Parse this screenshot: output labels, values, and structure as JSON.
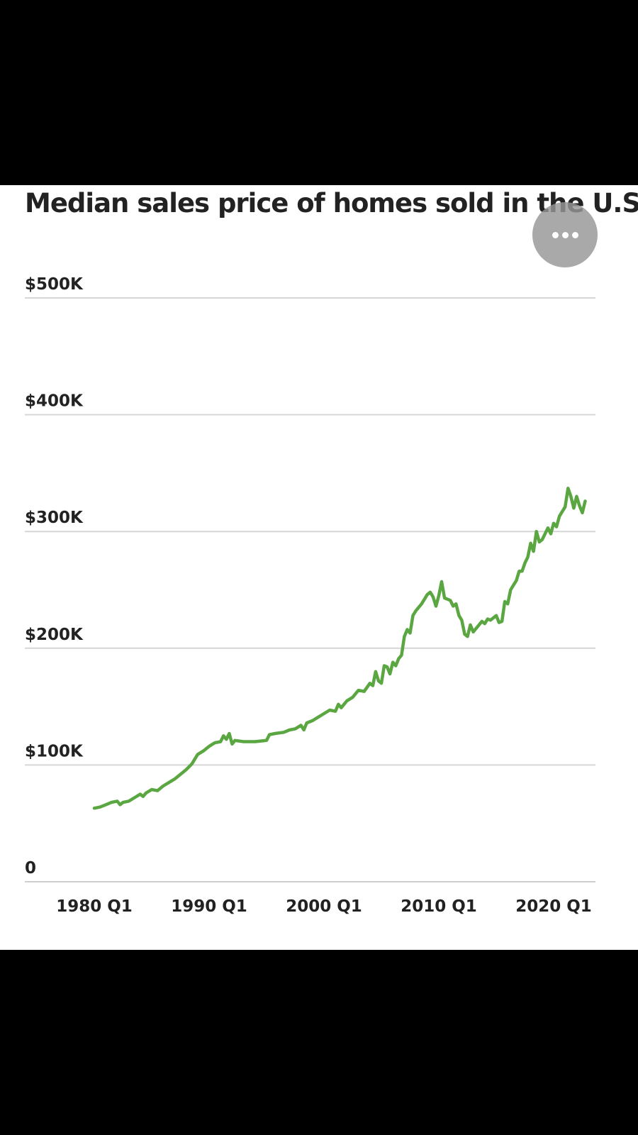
{
  "more_button_label": "More options",
  "chart_data": {
    "type": "line",
    "title": "Median sales price of homes sold in the U.S.",
    "xlabel": "",
    "ylabel": "",
    "ylim": [
      0,
      500000
    ],
    "xlim": [
      1980.0,
      2022.75
    ],
    "y_ticks": [
      {
        "value": 0,
        "label": "0"
      },
      {
        "value": 100000,
        "label": "$100K"
      },
      {
        "value": 200000,
        "label": "$200K"
      },
      {
        "value": 300000,
        "label": "$300K"
      },
      {
        "value": 400000,
        "label": "$400K"
      },
      {
        "value": 500000,
        "label": "$500K"
      }
    ],
    "x_ticks": [
      {
        "value": 1980.0,
        "label": "1980 Q1"
      },
      {
        "value": 1990.0,
        "label": "1990 Q1"
      },
      {
        "value": 2000.0,
        "label": "2000 Q1"
      },
      {
        "value": 2010.0,
        "label": "2010 Q1"
      },
      {
        "value": 2020.0,
        "label": "2020 Q1"
      }
    ],
    "grid": true,
    "color": "#5aa742",
    "series": [
      {
        "points": [
          [
            1980.0,
            63000
          ],
          [
            1980.5,
            64000
          ],
          [
            1981.0,
            66000
          ],
          [
            1981.5,
            68000
          ],
          [
            1982.0,
            69000
          ],
          [
            1982.25,
            66000
          ],
          [
            1982.5,
            68000
          ],
          [
            1983.0,
            69000
          ],
          [
            1983.5,
            72000
          ],
          [
            1984.0,
            75000
          ],
          [
            1984.25,
            73000
          ],
          [
            1984.5,
            76000
          ],
          [
            1985.0,
            79000
          ],
          [
            1985.5,
            78000
          ],
          [
            1986.0,
            82000
          ],
          [
            1986.5,
            85000
          ],
          [
            1987.0,
            88000
          ],
          [
            1987.5,
            92000
          ],
          [
            1988.0,
            96000
          ],
          [
            1988.5,
            101000
          ],
          [
            1989.0,
            109000
          ],
          [
            1989.5,
            112000
          ],
          [
            1990.0,
            116000
          ],
          [
            1990.5,
            119000
          ],
          [
            1991.0,
            120000
          ],
          [
            1991.25,
            125000
          ],
          [
            1991.5,
            122000
          ],
          [
            1991.75,
            127000
          ],
          [
            1992.0,
            118000
          ],
          [
            1992.25,
            121000
          ],
          [
            1993.0,
            120000
          ],
          [
            1994.0,
            120000
          ],
          [
            1995.0,
            121000
          ],
          [
            1995.25,
            126000
          ],
          [
            1995.75,
            127000
          ],
          [
            1996.5,
            128000
          ],
          [
            1997.0,
            130000
          ],
          [
            1997.5,
            131000
          ],
          [
            1998.0,
            134000
          ],
          [
            1998.25,
            130000
          ],
          [
            1998.5,
            136000
          ],
          [
            1999.0,
            138000
          ],
          [
            1999.5,
            141000
          ],
          [
            2000.0,
            144000
          ],
          [
            2000.5,
            147000
          ],
          [
            2001.0,
            146000
          ],
          [
            2001.25,
            152000
          ],
          [
            2001.5,
            149000
          ],
          [
            2002.0,
            155000
          ],
          [
            2002.5,
            158000
          ],
          [
            2003.0,
            164000
          ],
          [
            2003.5,
            163000
          ],
          [
            2004.0,
            170000
          ],
          [
            2004.25,
            168000
          ],
          [
            2004.5,
            180000
          ],
          [
            2004.75,
            172000
          ],
          [
            2005.0,
            170000
          ],
          [
            2005.25,
            185000
          ],
          [
            2005.5,
            184000
          ],
          [
            2005.75,
            178000
          ],
          [
            2006.0,
            188000
          ],
          [
            2006.25,
            185000
          ],
          [
            2006.5,
            191000
          ],
          [
            2006.75,
            194000
          ],
          [
            2007.0,
            210000
          ],
          [
            2007.25,
            216000
          ],
          [
            2007.5,
            213000
          ],
          [
            2007.75,
            228000
          ],
          [
            2008.0,
            232000
          ],
          [
            2008.5,
            238000
          ],
          [
            2009.0,
            246000
          ],
          [
            2009.25,
            248000
          ],
          [
            2009.5,
            244000
          ],
          [
            2009.75,
            236000
          ],
          [
            2010.0,
            245000
          ],
          [
            2010.25,
            257000
          ],
          [
            2010.5,
            243000
          ],
          [
            2011.0,
            241000
          ],
          [
            2011.25,
            236000
          ],
          [
            2011.5,
            238000
          ],
          [
            2011.75,
            228000
          ],
          [
            2012.0,
            224000
          ],
          [
            2012.25,
            212000
          ],
          [
            2012.5,
            210000
          ],
          [
            2012.75,
            220000
          ],
          [
            2013.0,
            214000
          ],
          [
            2013.5,
            220000
          ],
          [
            2013.75,
            223000
          ],
          [
            2014.0,
            221000
          ],
          [
            2014.25,
            225000
          ],
          [
            2014.5,
            224000
          ],
          [
            2015.0,
            228000
          ],
          [
            2015.25,
            222000
          ],
          [
            2015.5,
            223000
          ],
          [
            2015.75,
            240000
          ],
          [
            2016.0,
            238000
          ],
          [
            2016.25,
            250000
          ],
          [
            2016.5,
            254000
          ],
          [
            2016.75,
            258000
          ],
          [
            2017.0,
            266000
          ],
          [
            2017.25,
            266000
          ],
          [
            2017.5,
            273000
          ],
          [
            2017.75,
            278000
          ],
          [
            2018.0,
            290000
          ],
          [
            2018.25,
            283000
          ],
          [
            2018.5,
            300000
          ],
          [
            2018.75,
            291000
          ],
          [
            2019.0,
            293000
          ],
          [
            2019.25,
            298000
          ],
          [
            2019.5,
            303000
          ],
          [
            2019.75,
            298000
          ],
          [
            2020.0,
            307000
          ],
          [
            2020.25,
            304000
          ],
          [
            2020.5,
            313000
          ],
          [
            2020.75,
            317000
          ],
          [
            2021.0,
            321000
          ],
          [
            2021.25,
            337000
          ],
          [
            2021.5,
            330000
          ],
          [
            2021.75,
            320000
          ],
          [
            2022.0,
            330000
          ],
          [
            2022.25,
            322000
          ],
          [
            2022.5,
            316000
          ],
          [
            2022.75,
            326000
          ]
        ]
      }
    ]
  }
}
